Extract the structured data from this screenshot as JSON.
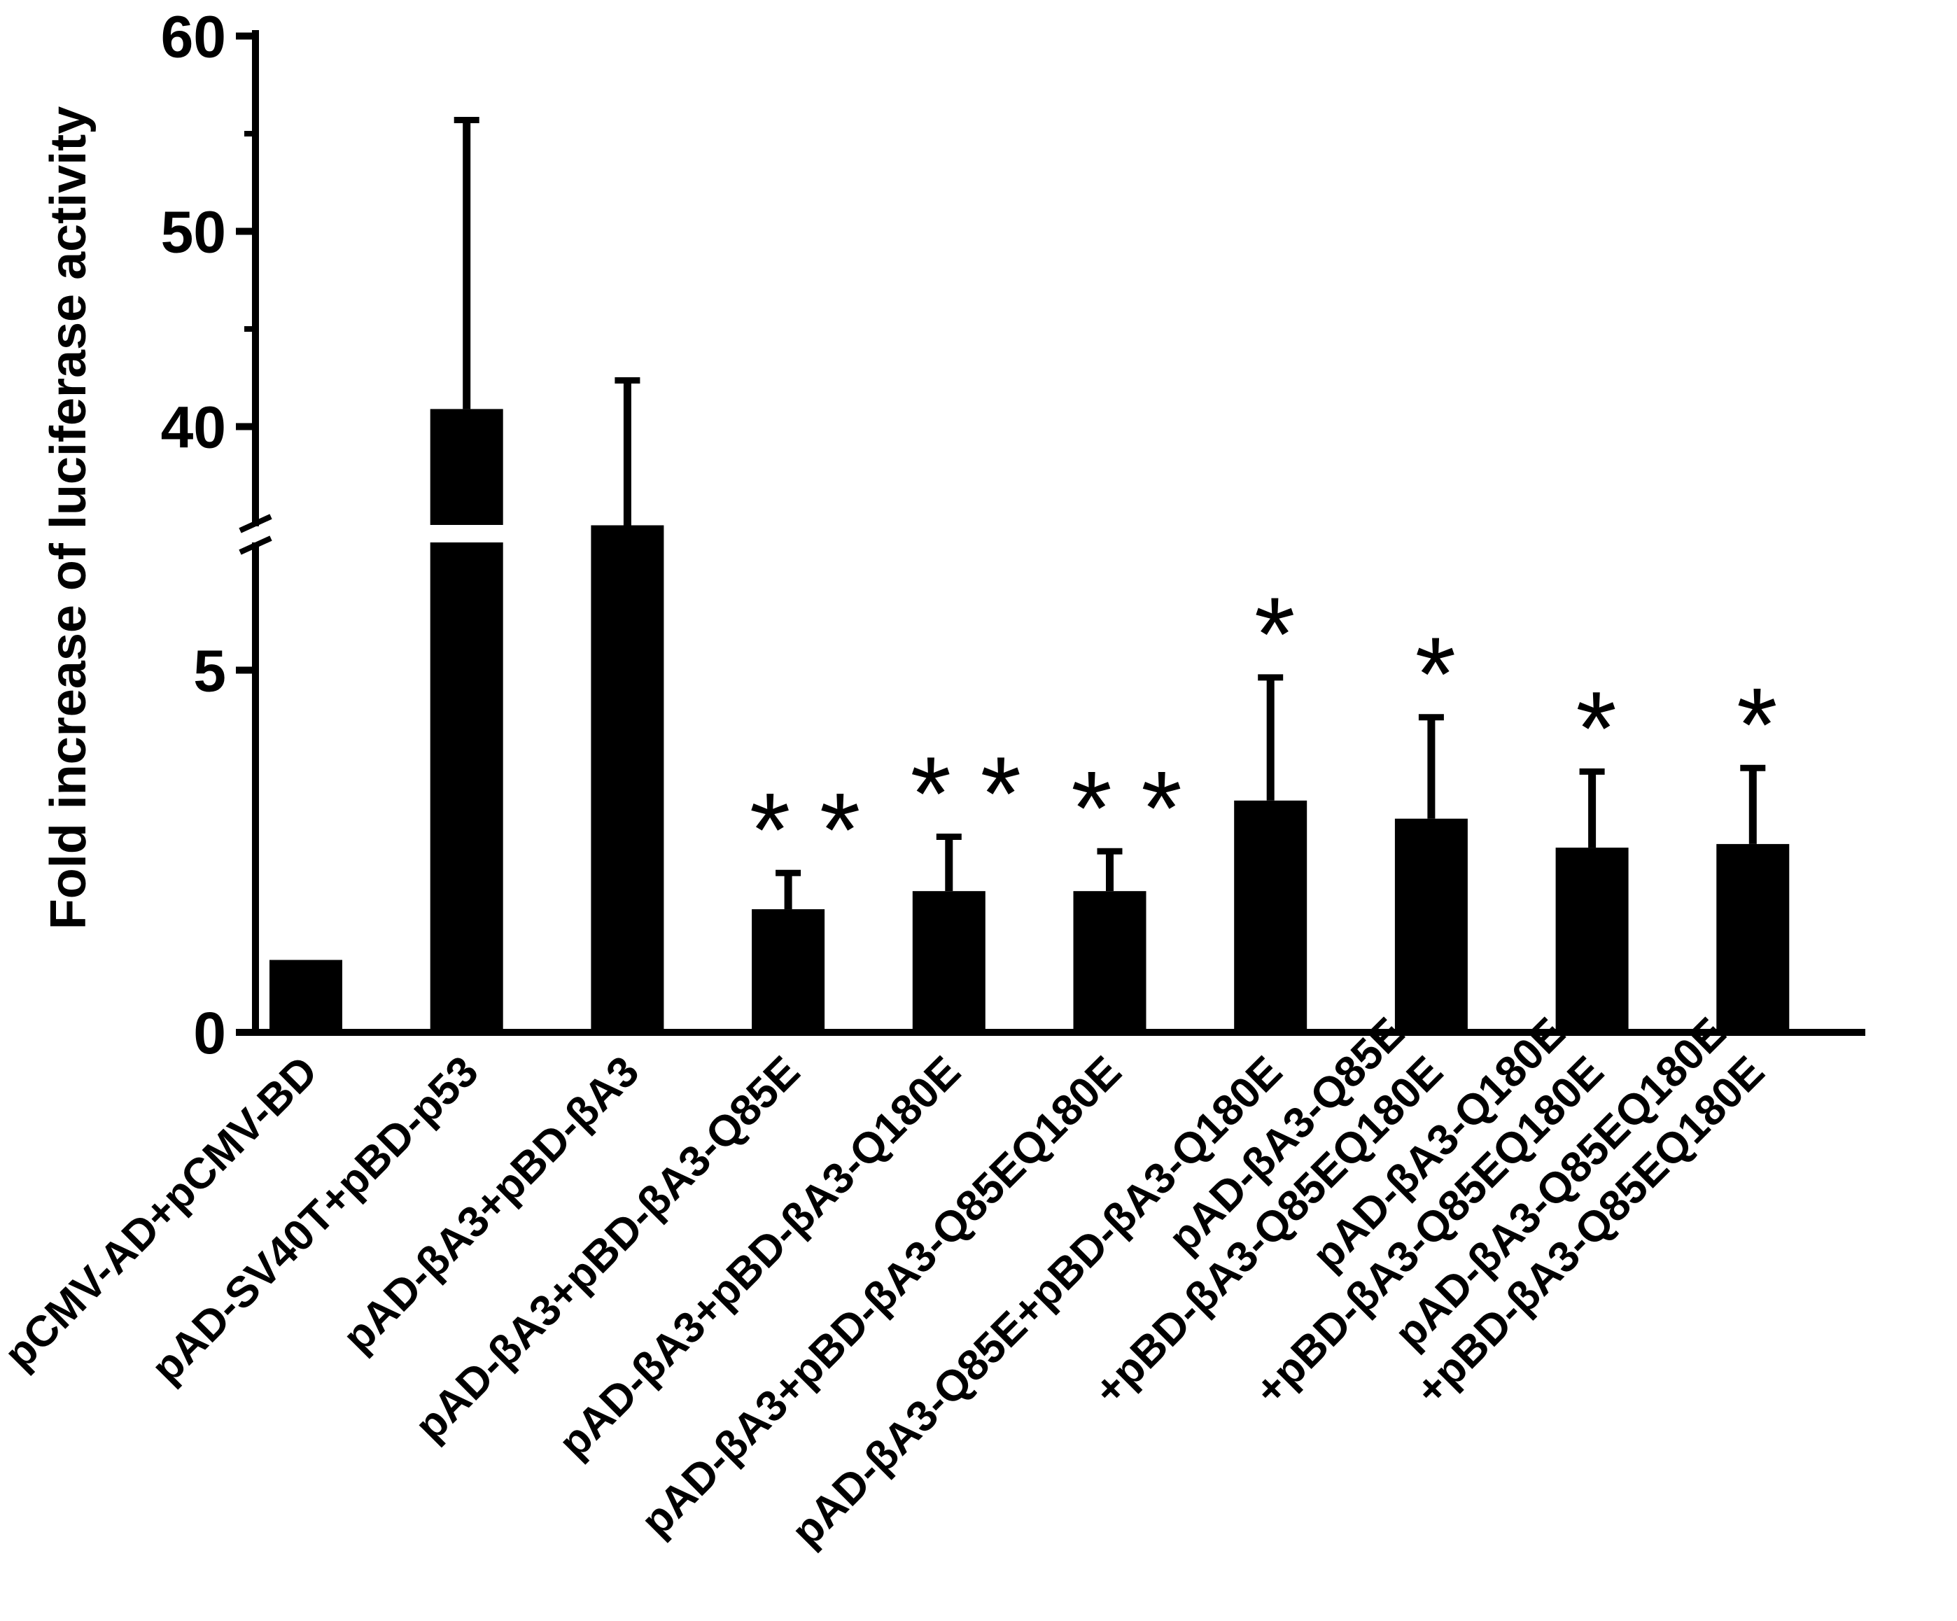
{
  "chart_data": {
    "type": "bar",
    "ylabel": "Fold increase of luciferase activity",
    "axis_break": {
      "lower_range": [
        0,
        9
      ],
      "upper_range": [
        35,
        60
      ]
    },
    "yticks_major": [
      0,
      5,
      40,
      50,
      60
    ],
    "yticks_minor": [
      45,
      55
    ],
    "categories": [
      [
        "pCMV-AD+pCMV-BD"
      ],
      [
        "pAD-SV40T+pBD-p53"
      ],
      [
        "pAD-βA3+pBD-βA3"
      ],
      [
        "pAD-βA3+pBD-βA3-Q85E"
      ],
      [
        "pAD-βA3+pBD-βA3-Q180E"
      ],
      [
        "pAD-βA3+pBD-βA3-Q85EQ180E"
      ],
      [
        "pAD-βA3-Q85E+pBD-βA3-Q180E"
      ],
      [
        "pAD-βA3-Q85E",
        "+pBD-βA3-Q85EQ180E"
      ],
      [
        "pAD-βA3-Q180E",
        "+pBD-βA3-Q85EQ180E"
      ],
      [
        "pAD-βA3-Q85EQ180E",
        "+pBD-βA3-Q85EQ180E"
      ]
    ],
    "values": [
      1.0,
      40.9,
      7.0,
      1.7,
      1.95,
      1.95,
      3.2,
      2.95,
      2.55,
      2.6
    ],
    "error_upper": [
      1.0,
      55.7,
      9.0,
      2.2,
      2.7,
      2.5,
      4.9,
      4.35,
      3.6,
      3.65
    ],
    "significance": [
      "",
      "",
      "",
      "**",
      "**",
      "**",
      "*",
      "*",
      "*",
      "*"
    ],
    "bar_color": "#000000",
    "grid": false,
    "legend": "none"
  }
}
